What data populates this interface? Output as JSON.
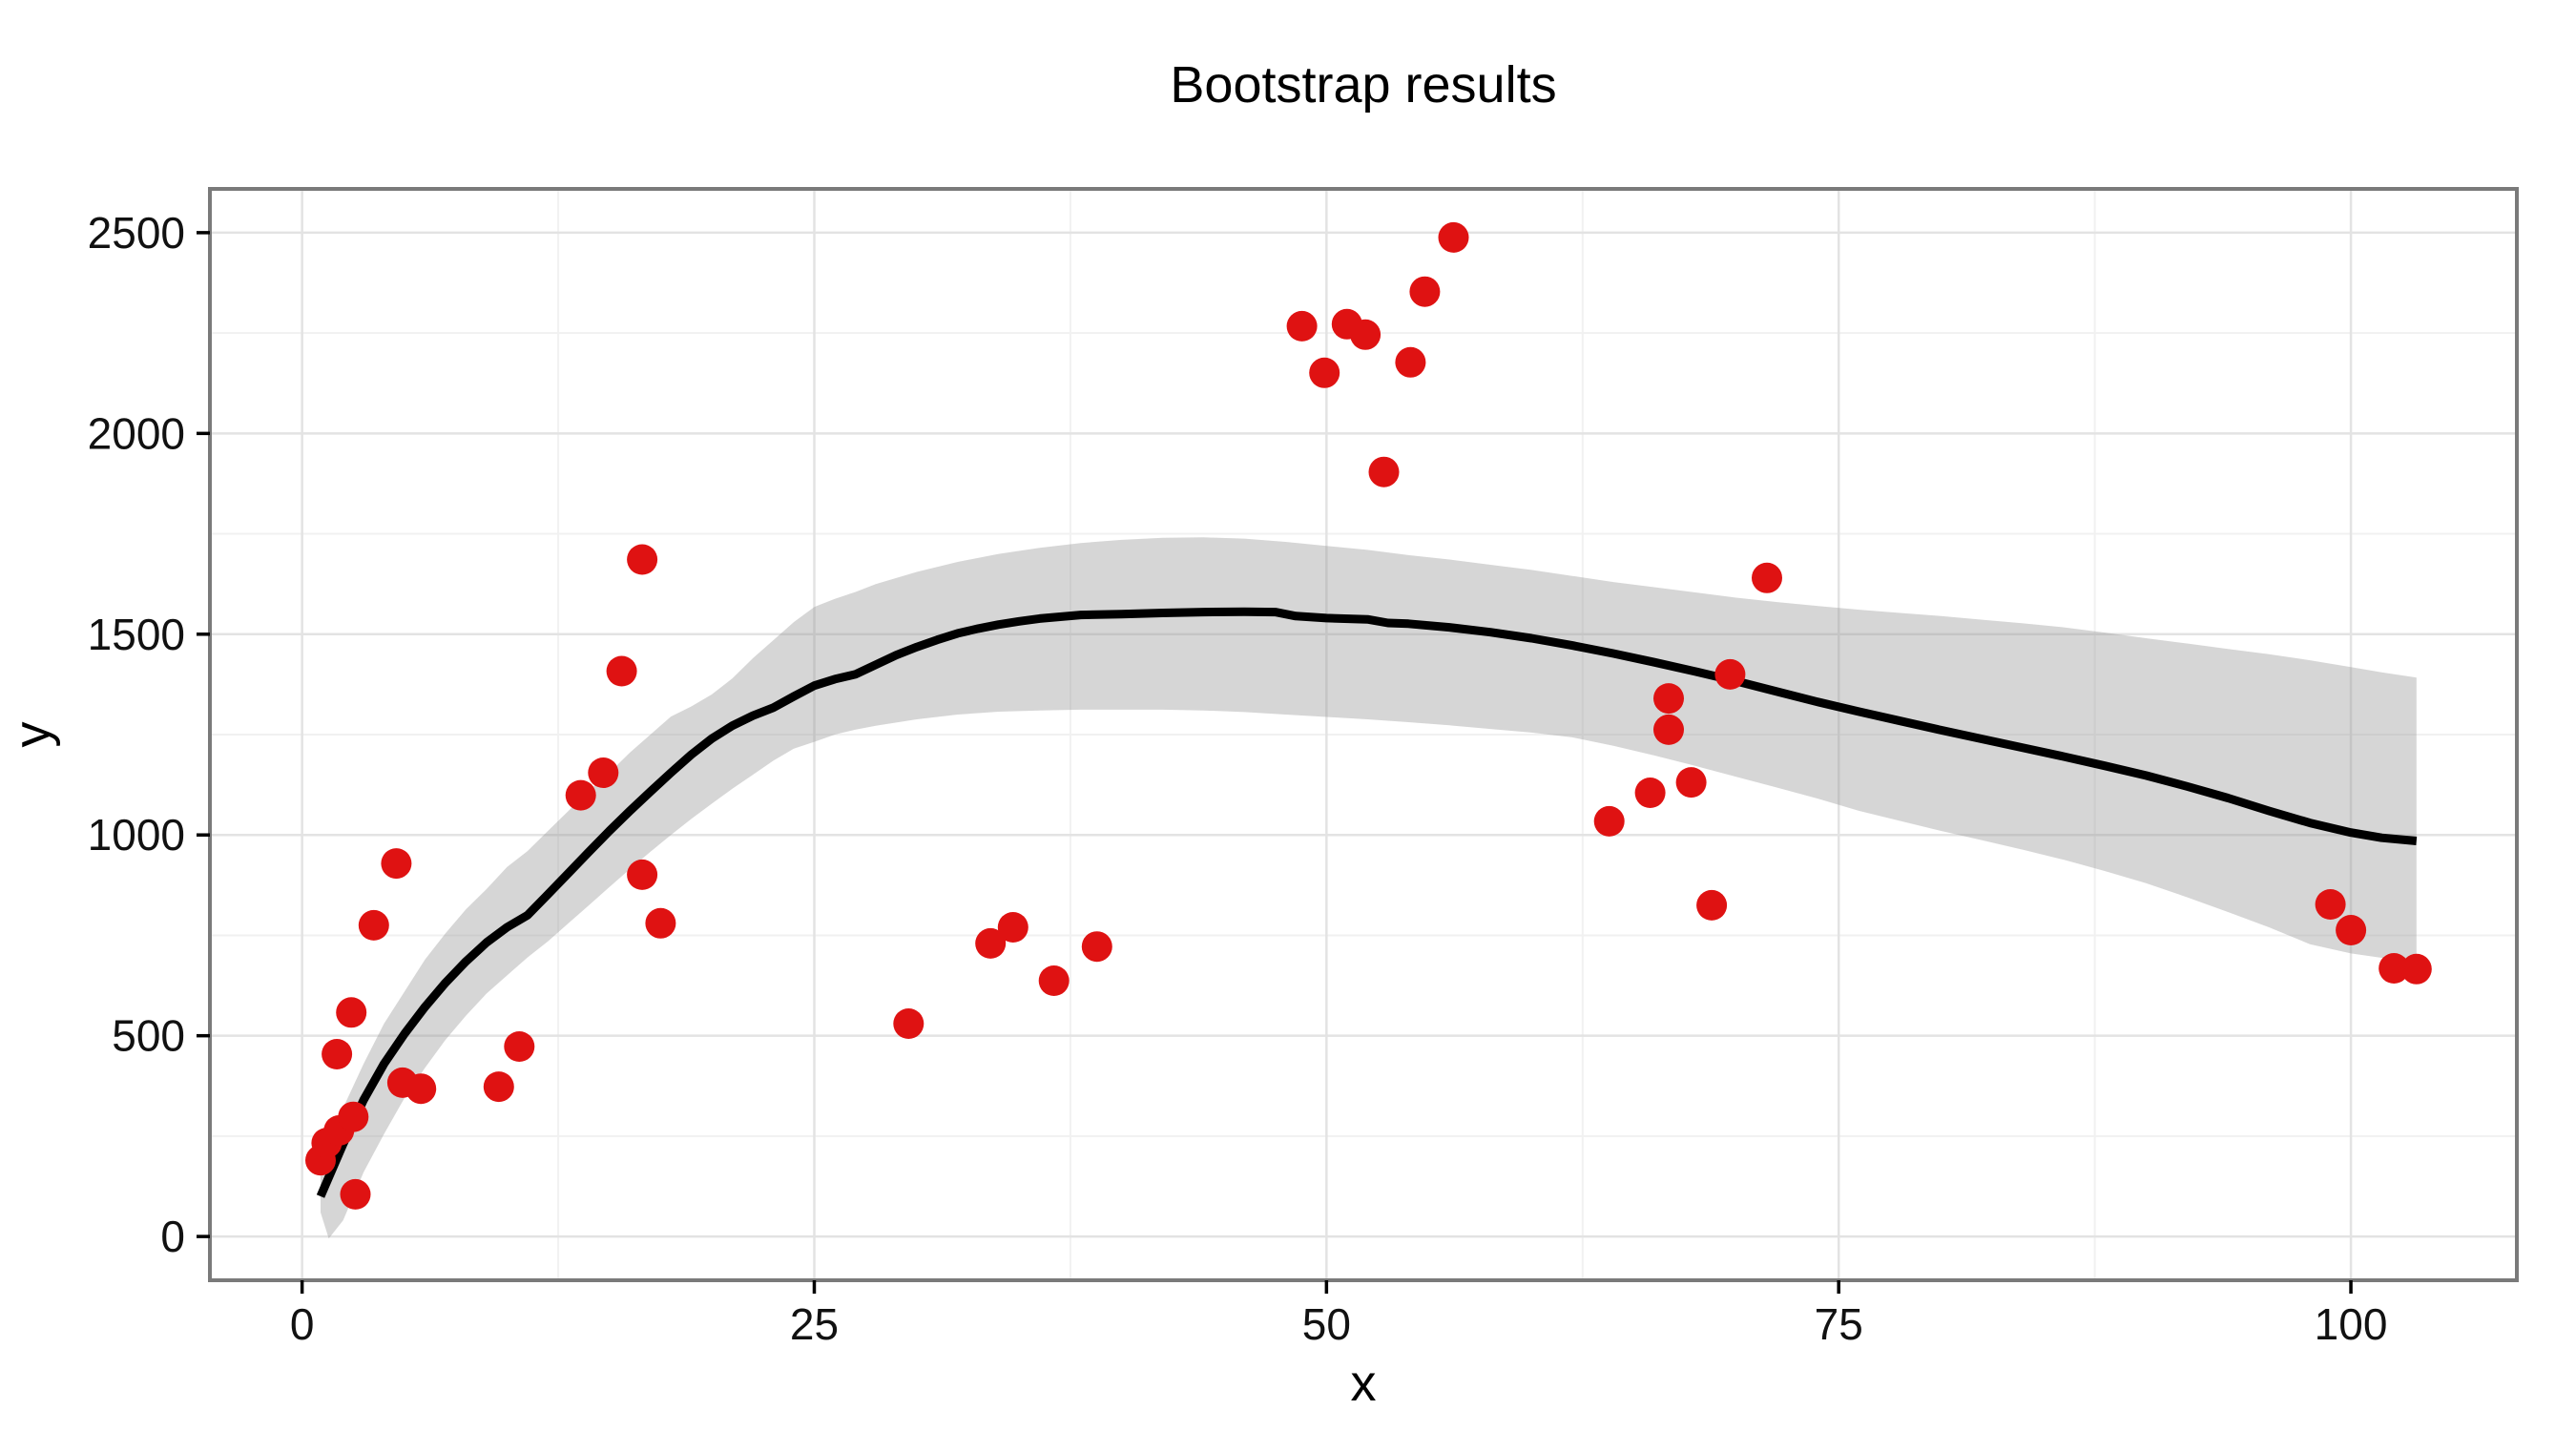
{
  "title": "Bootstrap results",
  "axes": {
    "x_label": "x",
    "y_label": "y"
  },
  "colors": {
    "point": "#DF1212",
    "smooth_line": "#000000",
    "ribbon": "#999999",
    "ribbon_opacity": 0.4,
    "grid_major": "#E3E3E3",
    "grid_minor": "#F1F1F1",
    "panel_border": "#7A7A7A",
    "tick": "#000000",
    "background": "#FFFFFF"
  },
  "chart_data": {
    "type": "scatter",
    "title": "Bootstrap results",
    "xlabel": "x",
    "ylabel": "y",
    "xlim": [
      -4.5,
      108.1
    ],
    "ylim": [
      -109,
      2609
    ],
    "x_ticks": [
      0,
      25,
      50,
      75,
      100
    ],
    "y_ticks": [
      0,
      500,
      1000,
      1500,
      2000,
      2500
    ],
    "x_minor": [
      12.5,
      37.5,
      62.5,
      87.5
    ],
    "y_minor": [
      250,
      750,
      1250,
      1750,
      2250
    ],
    "grid": true,
    "legend_position": "none",
    "points": [
      [
        0.9,
        190
      ],
      [
        1.2,
        233
      ],
      [
        1.8,
        264
      ],
      [
        2.5,
        298
      ],
      [
        2.6,
        105
      ],
      [
        2.4,
        558
      ],
      [
        1.7,
        454
      ],
      [
        3.5,
        775
      ],
      [
        4.6,
        929
      ],
      [
        4.9,
        383
      ],
      [
        5.8,
        368
      ],
      [
        9.6,
        373
      ],
      [
        10.6,
        473
      ],
      [
        13.6,
        1099
      ],
      [
        14.7,
        1155
      ],
      [
        15.6,
        1408
      ],
      [
        16.6,
        1686
      ],
      [
        16.6,
        901
      ],
      [
        17.5,
        780
      ],
      [
        29.6,
        530
      ],
      [
        33.6,
        730
      ],
      [
        34.7,
        770
      ],
      [
        36.7,
        637
      ],
      [
        38.8,
        722
      ],
      [
        48.8,
        2267
      ],
      [
        49.9,
        2151
      ],
      [
        51.0,
        2272
      ],
      [
        51.9,
        2246
      ],
      [
        52.8,
        1904
      ],
      [
        54.1,
        2177
      ],
      [
        54.8,
        2353
      ],
      [
        56.2,
        2488
      ],
      [
        63.8,
        1034
      ],
      [
        65.8,
        1105
      ],
      [
        66.7,
        1340
      ],
      [
        66.7,
        1262
      ],
      [
        67.8,
        1131
      ],
      [
        68.8,
        825
      ],
      [
        69.7,
        1400
      ],
      [
        71.5,
        1640
      ],
      [
        99.0,
        827
      ],
      [
        100.0,
        763
      ],
      [
        102.1,
        668
      ],
      [
        103.2,
        666
      ]
    ],
    "smooth_line": [
      [
        0.9,
        100
      ],
      [
        2,
        230
      ],
      [
        3,
        340
      ],
      [
        4,
        430
      ],
      [
        5,
        505
      ],
      [
        6,
        572
      ],
      [
        7,
        632
      ],
      [
        8,
        685
      ],
      [
        9,
        732
      ],
      [
        10,
        770
      ],
      [
        11,
        800
      ],
      [
        12,
        852
      ],
      [
        13,
        905
      ],
      [
        14,
        958
      ],
      [
        15,
        1010
      ],
      [
        16,
        1060
      ],
      [
        17,
        1108
      ],
      [
        18,
        1155
      ],
      [
        19,
        1200
      ],
      [
        20,
        1240
      ],
      [
        21,
        1272
      ],
      [
        22,
        1297
      ],
      [
        23,
        1317
      ],
      [
        24,
        1345
      ],
      [
        25,
        1372
      ],
      [
        26,
        1388
      ],
      [
        27,
        1400
      ],
      [
        28,
        1424
      ],
      [
        29,
        1448
      ],
      [
        30,
        1468
      ],
      [
        31,
        1486
      ],
      [
        32,
        1502
      ],
      [
        33,
        1514
      ],
      [
        34,
        1524
      ],
      [
        35,
        1532
      ],
      [
        36,
        1539
      ],
      [
        38,
        1548
      ],
      [
        40,
        1550
      ],
      [
        42,
        1553
      ],
      [
        44,
        1555
      ],
      [
        46,
        1556
      ],
      [
        47.5,
        1555
      ],
      [
        48.5,
        1545
      ],
      [
        50,
        1540
      ],
      [
        52,
        1537
      ],
      [
        53,
        1528
      ],
      [
        54,
        1526
      ],
      [
        56,
        1517
      ],
      [
        58,
        1505
      ],
      [
        60,
        1490
      ],
      [
        62,
        1472
      ],
      [
        64,
        1452
      ],
      [
        66,
        1430
      ],
      [
        68,
        1407
      ],
      [
        70,
        1383
      ],
      [
        72,
        1357
      ],
      [
        74,
        1331
      ],
      [
        76,
        1307
      ],
      [
        78,
        1284
      ],
      [
        80,
        1261
      ],
      [
        82,
        1239
      ],
      [
        84,
        1217
      ],
      [
        86,
        1195
      ],
      [
        88,
        1172
      ],
      [
        90,
        1148
      ],
      [
        92,
        1121
      ],
      [
        94,
        1092
      ],
      [
        96,
        1060
      ],
      [
        98,
        1030
      ],
      [
        100,
        1006
      ],
      [
        101.5,
        993
      ],
      [
        103.2,
        985
      ]
    ],
    "ribbon_lower": [
      [
        0.9,
        60
      ],
      [
        1.3,
        -5
      ],
      [
        2,
        40
      ],
      [
        3,
        160
      ],
      [
        4,
        255
      ],
      [
        5,
        345
      ],
      [
        6,
        420
      ],
      [
        7,
        490
      ],
      [
        8,
        550
      ],
      [
        9,
        605
      ],
      [
        10,
        650
      ],
      [
        11,
        695
      ],
      [
        12,
        735
      ],
      [
        13,
        780
      ],
      [
        14,
        825
      ],
      [
        15,
        870
      ],
      [
        16,
        915
      ],
      [
        17,
        958
      ],
      [
        18,
        1000
      ],
      [
        19,
        1040
      ],
      [
        20,
        1078
      ],
      [
        21,
        1115
      ],
      [
        22,
        1150
      ],
      [
        23,
        1185
      ],
      [
        24,
        1215
      ],
      [
        25,
        1232
      ],
      [
        26,
        1250
      ],
      [
        27,
        1262
      ],
      [
        28,
        1272
      ],
      [
        30,
        1288
      ],
      [
        32,
        1300
      ],
      [
        34,
        1307
      ],
      [
        36,
        1310
      ],
      [
        38,
        1312
      ],
      [
        40,
        1312
      ],
      [
        42,
        1312
      ],
      [
        44,
        1310
      ],
      [
        46,
        1306
      ],
      [
        48,
        1300
      ],
      [
        50,
        1294
      ],
      [
        52,
        1288
      ],
      [
        54,
        1281
      ],
      [
        56,
        1273
      ],
      [
        58,
        1264
      ],
      [
        60,
        1255
      ],
      [
        62,
        1243
      ],
      [
        64,
        1222
      ],
      [
        66,
        1198
      ],
      [
        68,
        1172
      ],
      [
        70,
        1145
      ],
      [
        72,
        1118
      ],
      [
        74,
        1090
      ],
      [
        76,
        1060
      ],
      [
        78,
        1035
      ],
      [
        80,
        1010
      ],
      [
        82,
        987
      ],
      [
        84,
        963
      ],
      [
        86,
        938
      ],
      [
        88,
        910
      ],
      [
        90,
        880
      ],
      [
        92,
        845
      ],
      [
        94,
        808
      ],
      [
        96,
        770
      ],
      [
        98,
        728
      ],
      [
        100,
        705
      ],
      [
        101.5,
        694
      ],
      [
        103.2,
        684
      ]
    ],
    "ribbon_upper": [
      [
        0.9,
        150
      ],
      [
        2,
        320
      ],
      [
        3,
        430
      ],
      [
        4,
        530
      ],
      [
        5,
        610
      ],
      [
        6,
        690
      ],
      [
        7,
        755
      ],
      [
        8,
        815
      ],
      [
        9,
        865
      ],
      [
        10,
        920
      ],
      [
        11,
        960
      ],
      [
        12,
        1010
      ],
      [
        13,
        1060
      ],
      [
        14,
        1110
      ],
      [
        15,
        1155
      ],
      [
        16,
        1205
      ],
      [
        17,
        1250
      ],
      [
        18,
        1295
      ],
      [
        19,
        1320
      ],
      [
        20,
        1350
      ],
      [
        21,
        1390
      ],
      [
        22,
        1440
      ],
      [
        23,
        1485
      ],
      [
        24,
        1530
      ],
      [
        25,
        1568
      ],
      [
        26,
        1588
      ],
      [
        27,
        1605
      ],
      [
        28,
        1625
      ],
      [
        30,
        1655
      ],
      [
        32,
        1680
      ],
      [
        34,
        1700
      ],
      [
        36,
        1715
      ],
      [
        38,
        1727
      ],
      [
        40,
        1735
      ],
      [
        42,
        1740
      ],
      [
        44,
        1741
      ],
      [
        46,
        1738
      ],
      [
        48,
        1730
      ],
      [
        50,
        1720
      ],
      [
        52,
        1710
      ],
      [
        54,
        1697
      ],
      [
        56,
        1686
      ],
      [
        58,
        1673
      ],
      [
        60,
        1660
      ],
      [
        62,
        1645
      ],
      [
        64,
        1630
      ],
      [
        66,
        1617
      ],
      [
        68,
        1604
      ],
      [
        70,
        1591
      ],
      [
        72,
        1580
      ],
      [
        74,
        1570
      ],
      [
        76,
        1561
      ],
      [
        78,
        1553
      ],
      [
        80,
        1545
      ],
      [
        82,
        1536
      ],
      [
        84,
        1527
      ],
      [
        86,
        1517
      ],
      [
        88,
        1504
      ],
      [
        90,
        1490
      ],
      [
        92,
        1477
      ],
      [
        94,
        1463
      ],
      [
        96,
        1450
      ],
      [
        98,
        1435
      ],
      [
        100,
        1418
      ],
      [
        101.5,
        1405
      ],
      [
        103.2,
        1392
      ]
    ]
  }
}
